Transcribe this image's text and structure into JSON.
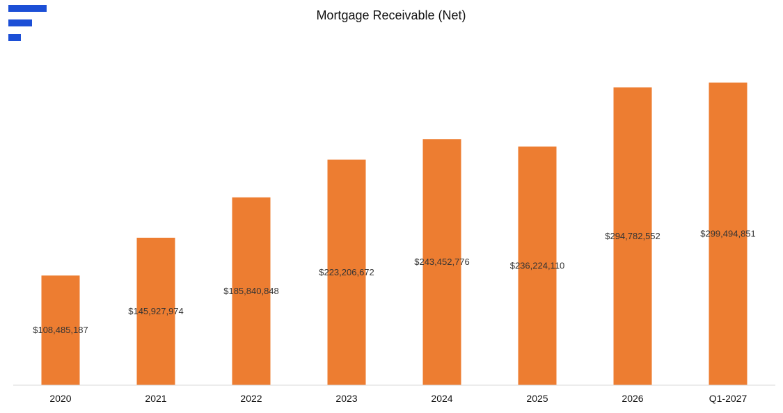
{
  "logo": {
    "icon": "three-bar-logo-icon",
    "color": "#1c4fd6"
  },
  "chart_data": {
    "type": "bar",
    "title": "Mortgage Receivable (Net)",
    "xlabel": "",
    "ylabel": "",
    "categories": [
      "2020",
      "2021",
      "2022",
      "2023",
      "2024",
      "2025",
      "2026",
      "Q1-2027"
    ],
    "values": [
      108485187,
      145927974,
      185840848,
      223206672,
      243452776,
      236224110,
      294782552,
      299494851
    ],
    "data_labels": [
      "$108,485,187",
      "$145,927,974",
      "$185,840,848",
      "$223,206,672",
      "$243,452,776",
      "$236,224,110",
      "$294,782,552",
      "$299,494,851"
    ],
    "ylim": [
      0,
      300000000
    ],
    "bar_color": "#ed7d31",
    "axis_color": "#d9d9d9",
    "grid": false,
    "legend": "none"
  }
}
